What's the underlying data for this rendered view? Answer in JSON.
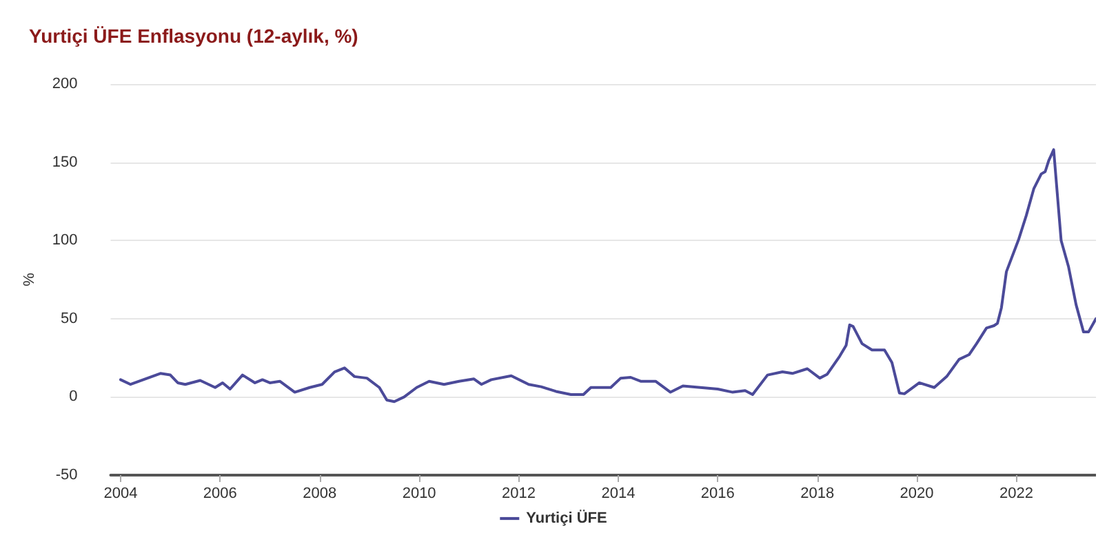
{
  "chart_data": {
    "type": "line",
    "title": "Yurtiçi ÜFE Enflasyonu (12-aylık, %)",
    "ylabel": "%",
    "xlim": [
      2003.8,
      2023.6
    ],
    "xticks": [
      2004,
      2006,
      2008,
      2010,
      2012,
      2014,
      2016,
      2018,
      2020,
      2022
    ],
    "ylim": [
      -50,
      200
    ],
    "yticks": [
      -50,
      0,
      50,
      100,
      150,
      200
    ],
    "grid": "y",
    "legend": "bottom",
    "marker": "none",
    "line_style": "solid",
    "series": [
      {
        "name": "Yurtiçi ÜFE",
        "color": "#4b4a99",
        "x": [
          2004,
          2004.2,
          2004.8,
          2005,
          2005.15,
          2005.3,
          2005.6,
          2005.9,
          2006.05,
          2006.2,
          2006.45,
          2006.7,
          2006.85,
          2007,
          2007.2,
          2007.5,
          2007.8,
          2008.05,
          2008.3,
          2008.5,
          2008.7,
          2008.95,
          2009.2,
          2009.35,
          2009.5,
          2009.7,
          2009.95,
          2010.2,
          2010.5,
          2010.8,
          2011.1,
          2011.25,
          2011.45,
          2011.85,
          2012.2,
          2012.45,
          2012.75,
          2013.05,
          2013.3,
          2013.45,
          2013.85,
          2014.05,
          2014.25,
          2014.45,
          2014.75,
          2015.05,
          2015.3,
          2015.65,
          2016,
          2016.3,
          2016.55,
          2016.7,
          2017,
          2017.3,
          2017.5,
          2017.8,
          2018.05,
          2018.2,
          2018.45,
          2018.58,
          2018.65,
          2018.72,
          2018.9,
          2019.1,
          2019.35,
          2019.5,
          2019.65,
          2019.75,
          2020.05,
          2020.35,
          2020.6,
          2020.85,
          2021.05,
          2021.2,
          2021.4,
          2021.55,
          2021.62,
          2021.7,
          2021.8,
          2022.05,
          2022.2,
          2022.35,
          2022.5,
          2022.58,
          2022.65,
          2022.75,
          2022.9,
          2023.05,
          2023.2,
          2023.35,
          2023.45,
          2023.6
        ],
        "values": [
          11,
          8,
          15,
          14,
          9,
          8,
          10.5,
          6,
          9,
          5,
          14,
          9,
          11,
          9,
          10,
          3,
          6,
          8,
          16,
          18.5,
          13,
          12,
          6,
          -2,
          -3,
          0,
          6,
          10,
          8,
          10,
          11.5,
          8,
          11,
          13.5,
          8,
          6.5,
          3.5,
          1.5,
          1.5,
          6,
          6,
          12,
          12.5,
          10,
          10,
          3,
          7,
          6,
          5,
          3,
          4,
          1.5,
          14,
          16,
          15,
          18,
          12,
          14.5,
          26,
          33,
          46,
          45,
          34,
          30,
          30,
          22,
          2.5,
          2,
          9,
          6,
          13,
          24,
          27,
          34,
          44,
          45.5,
          47,
          57,
          80,
          101,
          116,
          133,
          142.5,
          144,
          151,
          158,
          100,
          83,
          59,
          41.5,
          41.5,
          50
        ]
      }
    ]
  }
}
